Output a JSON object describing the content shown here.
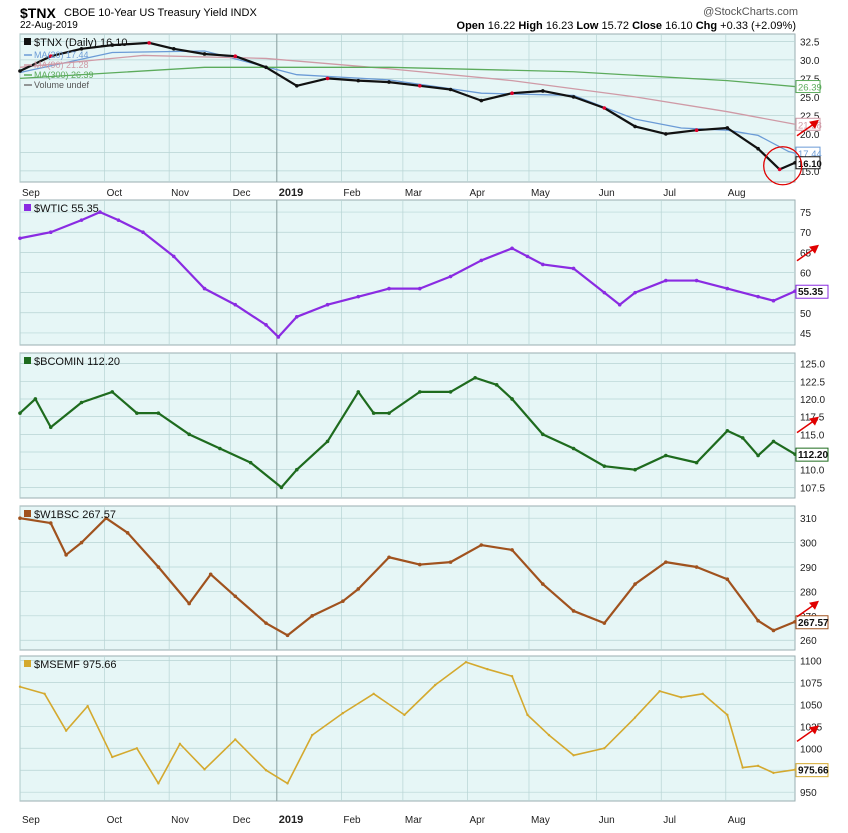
{
  "header": {
    "ticker": "$TNX",
    "description": "CBOE 10-Year US Treasury Yield INDX",
    "date": "22-Aug-2019",
    "watermark": "@StockCharts.com",
    "open_label": "Open",
    "open": "16.22",
    "high_label": "High",
    "high": "16.23",
    "low_label": "Low",
    "low": "15.72",
    "close_label": "Close",
    "close": "16.10",
    "chg_label": "Chg",
    "chg": "+0.33 (+2.09%)"
  },
  "colors": {
    "panel_bg": "#e6f6f6",
    "grid": "#b7d4d4",
    "tnx": "#111111",
    "tnx_down": "#e0002a",
    "ma20": "#6b9bd6",
    "ma90": "#cf9aa6",
    "ma300": "#5cab5c",
    "wtic": "#8a2be2",
    "bcomin": "#1e6b1e",
    "w1bsc": "#a0521e",
    "msemf": "#d4a92e",
    "arrow": "#e00000"
  },
  "x_axis": {
    "months": [
      "Sep",
      "Oct",
      "Nov",
      "Dec",
      "2019",
      "Feb",
      "Mar",
      "Apr",
      "May",
      "Jun",
      "Jul",
      "Aug"
    ]
  },
  "chart_data": [
    {
      "type": "line",
      "panel": "TNX",
      "legend_title": "$TNX (Daily) 16.10",
      "legend": [
        "MA(20) 17.44",
        "MA(90) 21.28",
        "MA(300) 26.39",
        "Volume undef"
      ],
      "yticks": [
        "32.5",
        "30.0",
        "27.5",
        "25.0",
        "22.5",
        "20.0",
        "17.5",
        "15.0"
      ],
      "ylim": [
        13.5,
        33.5
      ],
      "x": [
        0,
        10,
        20,
        30,
        42,
        50,
        60,
        70,
        80,
        90,
        100,
        110,
        120,
        130,
        140,
        150,
        160,
        170,
        180,
        190,
        200,
        210,
        220,
        230,
        240,
        247,
        252
      ],
      "values": [
        28.5,
        30.5,
        31.5,
        32.0,
        32.3,
        31.5,
        30.8,
        30.5,
        29.0,
        26.5,
        27.5,
        27.2,
        27.0,
        26.5,
        26.0,
        24.5,
        25.5,
        25.8,
        25.0,
        23.5,
        21.0,
        20.0,
        20.5,
        20.8,
        18.0,
        15.2,
        16.1
      ],
      "series": [
        {
          "name": "MA(20)",
          "x": [
            0,
            30,
            60,
            90,
            120,
            150,
            180,
            200,
            215,
            230,
            240,
            250,
            252
          ],
          "values": [
            28.3,
            31.0,
            31.2,
            28.0,
            27.3,
            25.5,
            25.2,
            22.0,
            20.8,
            20.5,
            19.8,
            17.6,
            17.4
          ]
        },
        {
          "name": "MA(90)",
          "x": [
            0,
            40,
            80,
            120,
            160,
            200,
            230,
            252
          ],
          "values": [
            29.0,
            30.6,
            30.2,
            28.8,
            27.2,
            25.0,
            23.0,
            21.3
          ]
        },
        {
          "name": "MA(300)",
          "x": [
            0,
            60,
            120,
            180,
            230,
            252
          ],
          "values": [
            27.5,
            29.0,
            29.0,
            28.4,
            27.2,
            26.4
          ]
        }
      ],
      "last_labels": [
        "26.39",
        "21.28",
        "17.44",
        "16.10"
      ]
    },
    {
      "type": "line",
      "panel": "WTIC",
      "legend_title": "$WTIC 55.35",
      "yticks": [
        "75",
        "70",
        "65",
        "60",
        "55",
        "50",
        "45"
      ],
      "ylim": [
        42,
        78
      ],
      "x": [
        0,
        10,
        20,
        26,
        32,
        40,
        50,
        60,
        70,
        80,
        84,
        90,
        100,
        110,
        120,
        130,
        140,
        150,
        160,
        165,
        170,
        180,
        190,
        195,
        200,
        210,
        220,
        230,
        240,
        245,
        252
      ],
      "values": [
        68.5,
        70.0,
        73.0,
        75.0,
        73.0,
        70.0,
        64.0,
        56.0,
        52.0,
        47.0,
        44.0,
        49.0,
        52.0,
        54.0,
        56.0,
        56.0,
        59.0,
        63.0,
        66.0,
        64.0,
        62.0,
        61.0,
        55.0,
        52.0,
        55.0,
        58.0,
        58.0,
        56.0,
        54.0,
        53.0,
        55.35
      ],
      "last_labels": [
        "55.35"
      ]
    },
    {
      "type": "line",
      "panel": "BCOMIN",
      "legend_title": "$BCOMIN 112.20",
      "yticks": [
        "125.0",
        "122.5",
        "120.0",
        "117.5",
        "115.0",
        "112.5",
        "110.0",
        "107.5"
      ],
      "ylim": [
        106,
        126.5
      ],
      "x": [
        0,
        5,
        10,
        20,
        30,
        38,
        45,
        55,
        65,
        75,
        85,
        90,
        100,
        110,
        115,
        120,
        130,
        140,
        148,
        155,
        160,
        170,
        180,
        190,
        200,
        210,
        220,
        230,
        235,
        240,
        245,
        252
      ],
      "values": [
        118.0,
        120.0,
        116.0,
        119.5,
        121.0,
        118.0,
        118.0,
        115.0,
        113.0,
        111.0,
        107.5,
        110.0,
        114.0,
        121.0,
        118.0,
        118.0,
        121.0,
        121.0,
        123.0,
        122.0,
        120.0,
        115.0,
        113.0,
        110.5,
        110.0,
        112.0,
        111.0,
        115.5,
        114.5,
        112.0,
        114.0,
        112.2
      ],
      "last_labels": [
        "112.20"
      ]
    },
    {
      "type": "line",
      "panel": "W1BSC",
      "legend_title": "$W1BSC 267.57",
      "yticks": [
        "310",
        "300",
        "290",
        "280",
        "270",
        "260"
      ],
      "ylim": [
        256,
        315
      ],
      "x": [
        0,
        10,
        15,
        20,
        28,
        35,
        45,
        55,
        62,
        70,
        80,
        87,
        95,
        105,
        110,
        120,
        130,
        140,
        150,
        160,
        170,
        180,
        190,
        200,
        210,
        220,
        230,
        240,
        245,
        252
      ],
      "values": [
        310.0,
        308.0,
        295.0,
        300.0,
        310.0,
        304.0,
        290.0,
        275.0,
        287.0,
        278.0,
        267.0,
        262.0,
        270.0,
        276.0,
        281.0,
        294.0,
        291.0,
        292.0,
        299.0,
        297.0,
        283.0,
        272.0,
        267.0,
        283.0,
        292.0,
        290.0,
        285.0,
        268.0,
        264.0,
        267.57
      ],
      "last_labels": [
        "267.57"
      ]
    },
    {
      "type": "line",
      "panel": "MSEMF",
      "legend_title": "$MSEMF 975.66",
      "yticks": [
        "1100",
        "1075",
        "1050",
        "1025",
        "1000",
        "975",
        "950"
      ],
      "ylim": [
        940,
        1105
      ],
      "x": [
        0,
        8,
        15,
        22,
        30,
        38,
        45,
        52,
        60,
        70,
        80,
        87,
        95,
        105,
        115,
        125,
        135,
        145,
        152,
        160,
        165,
        172,
        180,
        190,
        200,
        208,
        215,
        222,
        230,
        235,
        240,
        245,
        252
      ],
      "values": [
        1070.0,
        1062.0,
        1020.0,
        1048.0,
        990.0,
        1000.0,
        960.0,
        1005.0,
        976.0,
        1010.0,
        975.0,
        960.0,
        1015.0,
        1040.0,
        1062.0,
        1038.0,
        1072.0,
        1098.0,
        1090.0,
        1082.0,
        1038.0,
        1015.0,
        992.0,
        1000.0,
        1035.0,
        1065.0,
        1058.0,
        1062.0,
        1038.0,
        978.0,
        980.0,
        972.0,
        975.66
      ],
      "last_labels": [
        "975.66"
      ]
    }
  ]
}
